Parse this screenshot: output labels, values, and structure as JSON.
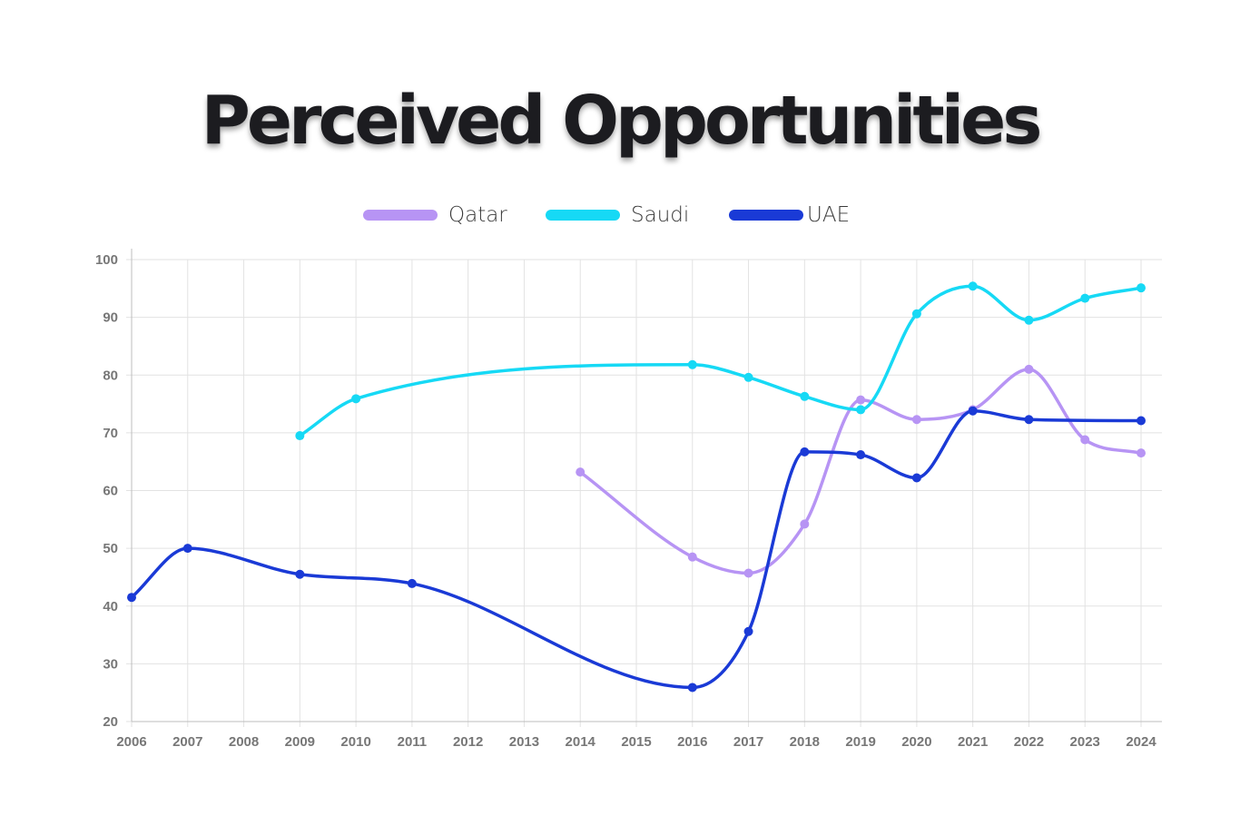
{
  "chart_data": {
    "type": "line",
    "title": "Perceived Opportunities",
    "categories": [
      "2006",
      "2007",
      "2008",
      "2009",
      "2010",
      "2011",
      "2012",
      "2013",
      "2014",
      "2015",
      "2016",
      "2017",
      "2018",
      "2019",
      "2020",
      "2021",
      "2022",
      "2023",
      "2024"
    ],
    "ylim": [
      20,
      100
    ],
    "yticks": [
      20,
      30,
      40,
      50,
      60,
      70,
      80,
      90,
      100
    ],
    "grid": true,
    "legend_position": "top-center",
    "series": [
      {
        "name": "Qatar",
        "color": "#b794f4",
        "points": [
          {
            "x": "2014",
            "y": 63.2
          },
          {
            "x": "2016",
            "y": 48.5
          },
          {
            "x": "2017",
            "y": 45.7
          },
          {
            "x": "2018",
            "y": 54.2
          },
          {
            "x": "2019",
            "y": 75.7
          },
          {
            "x": "2020",
            "y": 72.3
          },
          {
            "x": "2021",
            "y": 74.0
          },
          {
            "x": "2022",
            "y": 81.0
          },
          {
            "x": "2023",
            "y": 68.8
          },
          {
            "x": "2024",
            "y": 66.5
          }
        ]
      },
      {
        "name": "Saudi",
        "color": "#16d9f5",
        "points": [
          {
            "x": "2009",
            "y": 69.5
          },
          {
            "x": "2010",
            "y": 75.9
          },
          {
            "x": "2016",
            "y": 81.8
          },
          {
            "x": "2017",
            "y": 79.6
          },
          {
            "x": "2018",
            "y": 76.3
          },
          {
            "x": "2019",
            "y": 74.0
          },
          {
            "x": "2020",
            "y": 90.6
          },
          {
            "x": "2021",
            "y": 95.4
          },
          {
            "x": "2022",
            "y": 89.5
          },
          {
            "x": "2023",
            "y": 93.3
          },
          {
            "x": "2024",
            "y": 95.1
          }
        ]
      },
      {
        "name": "UAE",
        "color": "#1a3ad6",
        "points": [
          {
            "x": "2006",
            "y": 41.5
          },
          {
            "x": "2007",
            "y": 50.0
          },
          {
            "x": "2009",
            "y": 45.5
          },
          {
            "x": "2011",
            "y": 43.9
          },
          {
            "x": "2016",
            "y": 25.9
          },
          {
            "x": "2017",
            "y": 35.6
          },
          {
            "x": "2018",
            "y": 66.7
          },
          {
            "x": "2019",
            "y": 66.2
          },
          {
            "x": "2020",
            "y": 62.2
          },
          {
            "x": "2021",
            "y": 73.8
          },
          {
            "x": "2022",
            "y": 72.3
          },
          {
            "x": "2024",
            "y": 72.1
          }
        ]
      }
    ]
  }
}
